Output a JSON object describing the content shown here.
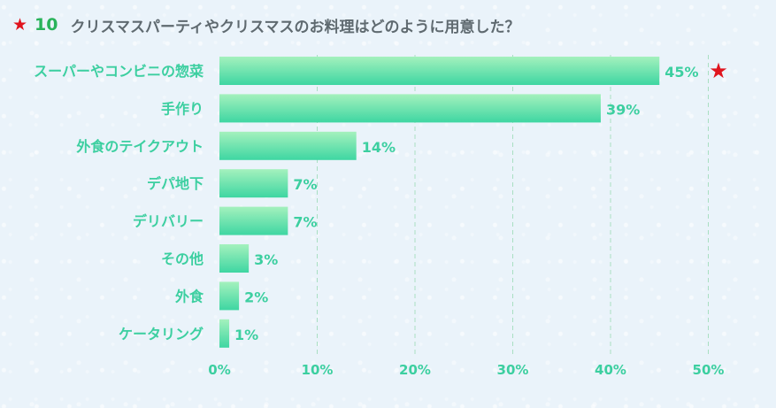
{
  "header": {
    "star": "★",
    "number": "10",
    "question": "クリスマスパーティやクリスマスのお料理はどのように用意した？"
  },
  "chart_data": {
    "type": "bar",
    "orientation": "horizontal",
    "categories": [
      "スーパーやコンビニの惣菜",
      "手作り",
      "外食のテイクアウト",
      "デパ地下",
      "デリバリー",
      "その他",
      "外食",
      "ケータリング"
    ],
    "values": [
      45,
      39,
      14,
      7,
      7,
      3,
      2,
      1
    ],
    "value_labels": [
      "45%",
      "39%",
      "14%",
      "7%",
      "7%",
      "3%",
      "2%",
      "1%"
    ],
    "x_ticks": [
      0,
      10,
      20,
      30,
      40,
      50
    ],
    "x_tick_labels": [
      "0%",
      "10%",
      "20%",
      "30%",
      "40%",
      "50%"
    ],
    "xlim": [
      0,
      50
    ],
    "grid": "vertical dashed",
    "highlight_marker": "★",
    "highlight_index": 0
  },
  "colors": {
    "bar_top": "#a4f1bd",
    "bar_bottom": "#3ed6a2",
    "label_text": "#3ccfa0",
    "grid": "#a9dfc2",
    "star": "#e0141e",
    "title_number": "#29b35a",
    "title_text": "#5f6a70"
  }
}
